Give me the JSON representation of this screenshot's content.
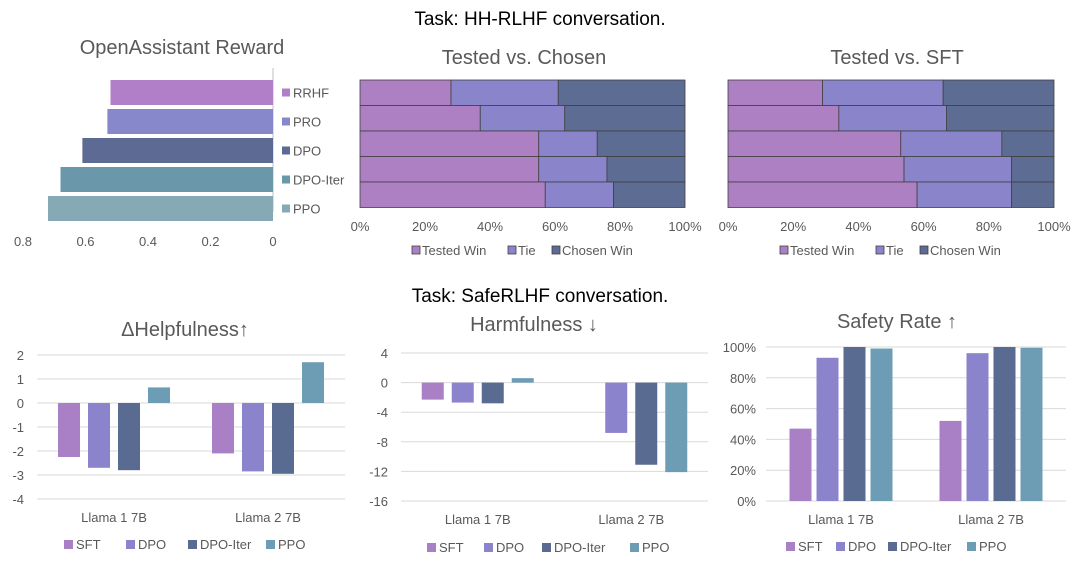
{
  "colors": {
    "SFT": "#a97fc6",
    "DPO": "#8b84cd",
    "DPO-Iter": "#5a6b92",
    "PPO": "#6c9db5",
    "RRHF": "#b07fc8",
    "PRO": "#8788cc",
    "DPO_rew": "#5d6a93",
    "DPO-Iter_rew": "#6a97a9",
    "PPO_rew": "#86aab5",
    "Tested Win": "#ad80c4",
    "Tie": "#8a84cb",
    "Chosen Win": "#5d6c93"
  },
  "headers": {
    "task1": "Task: HH-RLHF conversation.",
    "task2": "Task: SafeRLHF conversation."
  },
  "chart_data": [
    {
      "id": "reward",
      "type": "bar",
      "orientation": "horizontal",
      "title": "OpenAssistant Reward",
      "categories": [
        "RRHF",
        "PRO",
        "DPO",
        "DPO-Iter",
        "PPO"
      ],
      "values": [
        0.52,
        0.53,
        0.61,
        0.68,
        0.72
      ],
      "xlim": [
        0.8,
        0
      ],
      "xticks": [
        "0.8",
        "0.6",
        "0.4",
        "0.2",
        "0"
      ]
    },
    {
      "id": "chosen",
      "type": "bar",
      "orientation": "horizontal",
      "stacked": true,
      "title": "Tested vs. Chosen",
      "series_names": [
        "Tested Win",
        "Tie",
        "Chosen Win"
      ],
      "rows": [
        [
          28,
          33,
          39
        ],
        [
          37,
          26,
          37
        ],
        [
          55,
          18,
          27
        ],
        [
          55,
          21,
          24
        ],
        [
          57,
          21,
          22
        ]
      ],
      "xticks": [
        "0%",
        "20%",
        "40%",
        "60%",
        "80%",
        "100%"
      ]
    },
    {
      "id": "sft",
      "type": "bar",
      "orientation": "horizontal",
      "stacked": true,
      "title": "Tested vs. SFT",
      "series_names": [
        "Tested Win",
        "Tie",
        "Chosen Win"
      ],
      "rows": [
        [
          29,
          37,
          34
        ],
        [
          34,
          33,
          33
        ],
        [
          53,
          31,
          16
        ],
        [
          54,
          33,
          13
        ],
        [
          58,
          29,
          13
        ]
      ],
      "xticks": [
        "0%",
        "20%",
        "40%",
        "60%",
        "80%",
        "100%"
      ]
    },
    {
      "id": "help",
      "type": "bar",
      "title": "ΔHelpfulness↑",
      "categories": [
        "Llama 1 7B",
        "Llama 2 7B"
      ],
      "series": [
        {
          "name": "SFT",
          "values": [
            -2.25,
            -2.1
          ]
        },
        {
          "name": "DPO",
          "values": [
            -2.7,
            -2.85
          ]
        },
        {
          "name": "DPO-Iter",
          "values": [
            -2.8,
            -2.95
          ]
        },
        {
          "name": "PPO",
          "values": [
            0.65,
            1.7
          ]
        }
      ],
      "ylim": [
        -4,
        2
      ],
      "yticks": [
        "2",
        "1",
        "0",
        "-1",
        "-2",
        "-3",
        "-4"
      ]
    },
    {
      "id": "harm",
      "type": "bar",
      "title": "Harmfulness ↓",
      "categories": [
        "Llama 1 7B",
        "Llama 2 7B"
      ],
      "series": [
        {
          "name": "SFT",
          "values": [
            -2.3,
            0
          ]
        },
        {
          "name": "DPO",
          "values": [
            -2.7,
            -6.8
          ]
        },
        {
          "name": "DPO-Iter",
          "values": [
            -2.8,
            -11.1
          ]
        },
        {
          "name": "PPO",
          "values": [
            0.6,
            -12.1
          ]
        }
      ],
      "ylim": [
        -16,
        4
      ],
      "yticks": [
        "4",
        "0",
        "-4",
        "-8",
        "-12",
        "-16"
      ]
    },
    {
      "id": "safe",
      "type": "bar",
      "title": "Safety Rate ↑",
      "categories": [
        "Llama 1 7B",
        "Llama 2 7B"
      ],
      "series": [
        {
          "name": "SFT",
          "values": [
            47,
            52
          ]
        },
        {
          "name": "DPO",
          "values": [
            93,
            96
          ]
        },
        {
          "name": "DPO-Iter",
          "values": [
            100,
            100
          ]
        },
        {
          "name": "PPO",
          "values": [
            99,
            99.5
          ]
        }
      ],
      "ylim": [
        0,
        100
      ],
      "yticks": [
        "100%",
        "80%",
        "60%",
        "40%",
        "20%",
        "0%"
      ]
    }
  ]
}
